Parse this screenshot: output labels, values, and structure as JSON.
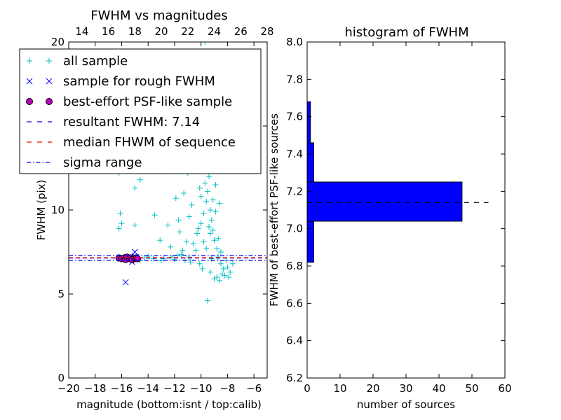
{
  "chart_data": [
    {
      "type": "scatter",
      "title": "FWHM vs magnitudes",
      "xlabel": "magnitude (bottom:isnt / top:calib)",
      "ylabel": "FWHM (pix)",
      "xlim": [
        -20,
        -5
      ],
      "ylim": [
        0,
        20
      ],
      "x_ticks": [
        "−20",
        "−18",
        "−16",
        "−14",
        "−12",
        "−10",
        "−8",
        "−6"
      ],
      "y_ticks": [
        "0",
        "5",
        "10"
      ],
      "top_xlim": [
        13,
        28
      ],
      "top_x_ticks": [
        "14",
        "16",
        "18",
        "20",
        "22",
        "24",
        "26",
        "28"
      ],
      "legend_position": "upper-left",
      "legend": [
        {
          "label": "all sample",
          "marker": "plus",
          "color": "#00bfbf"
        },
        {
          "label": "sample for rough FWHM",
          "marker": "x",
          "color": "#0000ff"
        },
        {
          "label": "best-effort PSF-like sample",
          "marker": "circle",
          "color": "#bf00bf"
        },
        {
          "label": "resultant FWHM: 7.14",
          "line": "dashed",
          "color": "#0000ff"
        },
        {
          "label": "median FHWM of sequence",
          "line": "dashed",
          "color": "#ff0000"
        },
        {
          "label": "sigma range",
          "line": "dashdot",
          "color": "#0000ff"
        }
      ],
      "resultant_fwhm": 7.14,
      "median_fwhm": 7.14,
      "sigma_range": [
        7.0,
        7.28
      ],
      "series": [
        {
          "name": "all sample",
          "color": "#00bfbf",
          "points": [
            [
              -16.2,
              12.2
            ],
            [
              -15.1,
              12.5
            ],
            [
              -15.0,
              11.3
            ],
            [
              -14.6,
              11.8
            ],
            [
              -16.1,
              9.8
            ],
            [
              -16.0,
              9.2
            ],
            [
              -16.2,
              8.9
            ],
            [
              -15.0,
              9.1
            ],
            [
              -15.8,
              7.2
            ],
            [
              -15.2,
              7.3
            ],
            [
              -14.6,
              7.0
            ],
            [
              -14.0,
              7.25
            ],
            [
              -13.6,
              7.1
            ],
            [
              -13.5,
              9.7
            ],
            [
              -12.8,
              7.1
            ],
            [
              -12.2,
              7.2
            ],
            [
              -11.8,
              7.3
            ],
            [
              -11.2,
              7.0
            ],
            [
              -10.9,
              7.2
            ],
            [
              -10.6,
              8.0
            ],
            [
              -10.3,
              8.6
            ],
            [
              -10.0,
              9.2
            ],
            [
              -9.8,
              9.8
            ],
            [
              -9.6,
              10.5
            ],
            [
              -9.5,
              11.1
            ],
            [
              -9.3,
              10.0
            ],
            [
              -9.2,
              9.4
            ],
            [
              -9.1,
              8.8
            ],
            [
              -9.0,
              8.2
            ],
            [
              -8.8,
              7.7
            ],
            [
              -8.7,
              7.2
            ],
            [
              -8.5,
              6.8
            ],
            [
              -8.3,
              6.5
            ],
            [
              -8.2,
              6.1
            ],
            [
              -8.0,
              6.6
            ],
            [
              -7.8,
              6.3
            ],
            [
              -7.6,
              6.8
            ],
            [
              -9.4,
              12.0
            ],
            [
              -9.7,
              11.6
            ],
            [
              -9.9,
              12.4
            ],
            [
              -10.1,
              11.3
            ],
            [
              -9.0,
              12.8
            ],
            [
              -8.6,
              10.4
            ],
            [
              -8.9,
              9.9
            ],
            [
              -9.3,
              8.6
            ],
            [
              -9.6,
              7.7
            ],
            [
              -10.4,
              7.6
            ],
            [
              -8.8,
              6.0
            ],
            [
              -8.4,
              6.2
            ],
            [
              -9.2,
              7.1
            ],
            [
              -9.0,
              5.9
            ],
            [
              -9.5,
              4.6
            ],
            [
              -12.6,
              12.3
            ],
            [
              -11.0,
              12.2
            ],
            [
              -11.3,
              11.0
            ],
            [
              -10.7,
              10.3
            ],
            [
              -11.9,
              10.7
            ],
            [
              -11.7,
              9.4
            ],
            [
              -12.5,
              9.1
            ],
            [
              -13.1,
              8.2
            ],
            [
              -11.1,
              8.1
            ],
            [
              -10.2,
              8.9
            ],
            [
              -9.7,
              20.0
            ],
            [
              -10.8,
              6.9
            ],
            [
              -11.5,
              7.35
            ],
            [
              -12.0,
              7.05
            ],
            [
              -13.0,
              7.0
            ],
            [
              -14.3,
              7.15
            ],
            [
              -15.5,
              7.1
            ],
            [
              -16.3,
              7.15
            ],
            [
              -10.5,
              12.5
            ],
            [
              -8.5,
              7.5
            ],
            [
              -8.1,
              7.0
            ],
            [
              -8.7,
              8.3
            ],
            [
              -9.1,
              10.6
            ],
            [
              -9.8,
              8.1
            ],
            [
              -10.9,
              9.6
            ],
            [
              -11.6,
              8.7
            ],
            [
              -12.3,
              7.8
            ],
            [
              -11.4,
              7.6
            ],
            [
              -10.1,
              6.8
            ],
            [
              -9.9,
              6.5
            ],
            [
              -9.3,
              6.3
            ],
            [
              -8.6,
              5.8
            ],
            [
              -7.9,
              6.0
            ],
            [
              -8.9,
              11.5
            ],
            [
              -9.4,
              9.0
            ],
            [
              -10.0,
              10.8
            ]
          ]
        },
        {
          "name": "sample for rough FWHM",
          "color": "#0000ff",
          "points": [
            [
              -15.7,
              5.7
            ],
            [
              -15.0,
              7.5
            ],
            [
              -15.4,
              7.2
            ],
            [
              -16.1,
              7.1
            ],
            [
              -14.9,
              7.2
            ],
            [
              -15.2,
              6.9
            ]
          ]
        },
        {
          "name": "best-effort PSF-like sample",
          "color": "#bf00bf",
          "points": [
            [
              -16.2,
              7.15
            ],
            [
              -16.0,
              7.1
            ],
            [
              -15.8,
              7.15
            ],
            [
              -15.7,
              7.05
            ],
            [
              -15.6,
              7.2
            ],
            [
              -15.4,
              7.1
            ],
            [
              -15.3,
              7.15
            ],
            [
              -15.2,
              7.05
            ],
            [
              -15.0,
              7.1
            ],
            [
              -14.9,
              7.15
            ],
            [
              -14.8,
              7.1
            ]
          ]
        }
      ]
    },
    {
      "type": "bar",
      "orientation": "horizontal",
      "title": "histogram of FWHM",
      "xlabel": "number of sources",
      "ylabel": "FWHM of best-effort PSF-like sources",
      "xlim": [
        0,
        60
      ],
      "ylim": [
        6.2,
        8.0
      ],
      "x_ticks": [
        "0",
        "10",
        "20",
        "30",
        "40",
        "50",
        "60"
      ],
      "y_ticks": [
        "6.2",
        "6.4",
        "6.6",
        "6.8",
        "7.0",
        "7.2",
        "7.4",
        "7.6",
        "7.8",
        "8.0"
      ],
      "color": "#0000ff",
      "bins": [
        {
          "from": 6.82,
          "to": 7.04,
          "count": 2
        },
        {
          "from": 7.04,
          "to": 7.25,
          "count": 47
        },
        {
          "from": 7.25,
          "to": 7.46,
          "count": 2
        },
        {
          "from": 7.46,
          "to": 7.68,
          "count": 1
        }
      ],
      "reference_line": {
        "value": 7.14,
        "x_extent": [
          0,
          55
        ],
        "style": "dashed",
        "color": "#000000"
      }
    }
  ]
}
